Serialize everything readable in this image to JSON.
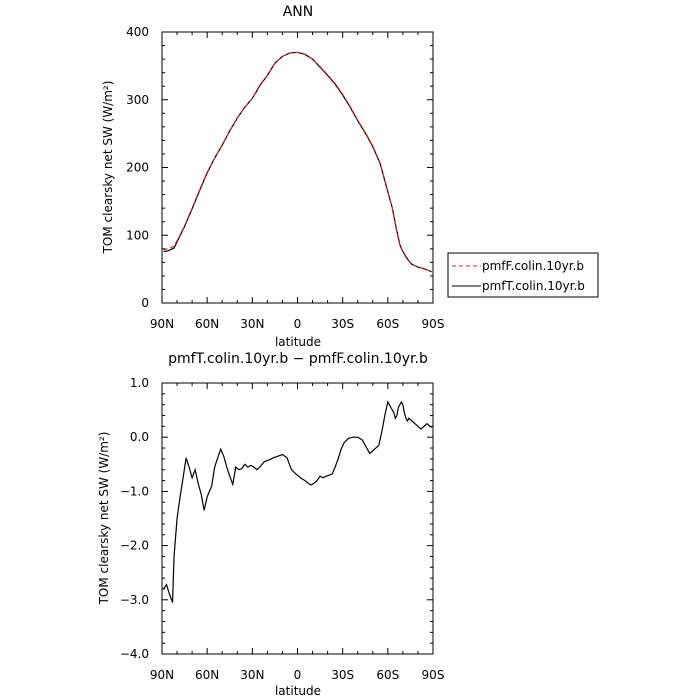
{
  "chart_data": [
    {
      "type": "line",
      "title": "ANN",
      "xlabel": "latitude",
      "ylabel": "TOM clearsky net SW (W/m²)",
      "xlim": [
        90,
        -90
      ],
      "ylim": [
        0,
        400
      ],
      "xticks": [
        90,
        60,
        30,
        0,
        -30,
        -60,
        -90
      ],
      "xtick_labels": [
        "90N",
        "60N",
        "30N",
        "0",
        "30S",
        "60S",
        "90S"
      ],
      "yticks": [
        0,
        100,
        200,
        300,
        400
      ],
      "ytick_labels": [
        "0",
        "100",
        "200",
        "300",
        "400"
      ],
      "grid": false,
      "legend_placement": "right",
      "series": [
        {
          "name": "pmfF.colin.10yr.b",
          "color": "#d62728",
          "dash": "dashed",
          "x": [
            89,
            86,
            82,
            79,
            75,
            70,
            65,
            60,
            55,
            50,
            45,
            40,
            35,
            30,
            25,
            20,
            15,
            10,
            5,
            0,
            -5,
            -10,
            -15,
            -20,
            -25,
            -30,
            -35,
            -40,
            -45,
            -50,
            -55,
            -60,
            -63,
            -66,
            -68,
            -70,
            -73,
            -76,
            -80,
            -85,
            -89
          ],
          "y": [
            79,
            80,
            84,
            96,
            114,
            140,
            167,
            193,
            214,
            234,
            254,
            273,
            289,
            302,
            322,
            336,
            354,
            364,
            369,
            370,
            367,
            360,
            349,
            337,
            324,
            308,
            290,
            270,
            252,
            232,
            206,
            165,
            140,
            105,
            85,
            75,
            64,
            57,
            53,
            50,
            46
          ]
        },
        {
          "name": "pmfT.colin.10yr.b",
          "color": "#000000",
          "dash": "solid",
          "x": [
            89,
            86,
            82,
            79,
            75,
            70,
            65,
            60,
            55,
            50,
            45,
            40,
            35,
            30,
            25,
            20,
            15,
            10,
            5,
            0,
            -5,
            -10,
            -15,
            -20,
            -25,
            -30,
            -35,
            -40,
            -45,
            -50,
            -55,
            -60,
            -63,
            -66,
            -68,
            -70,
            -73,
            -76,
            -80,
            -85,
            -89
          ],
          "y": [
            76,
            77,
            81,
            95,
            113,
            139,
            166,
            192,
            214,
            233,
            254,
            273,
            289,
            302,
            321,
            336,
            354,
            364,
            369,
            370,
            367,
            360,
            348,
            336,
            323,
            307,
            289,
            269,
            251,
            231,
            205,
            164,
            140,
            106,
            86,
            76,
            65,
            57,
            53,
            50,
            46
          ]
        }
      ]
    },
    {
      "type": "line",
      "title": "pmfT.colin.10yr.b − pmfF.colin.10yr.b",
      "xlabel": "latitude",
      "ylabel": "TOM clearsky net SW (W/m²)",
      "xlim": [
        90,
        -90
      ],
      "ylim": [
        -4.0,
        1.0
      ],
      "xticks": [
        90,
        60,
        30,
        0,
        -30,
        -60,
        -90
      ],
      "xtick_labels": [
        "90N",
        "60N",
        "30N",
        "0",
        "30S",
        "60S",
        "90S"
      ],
      "yticks": [
        1.0,
        0.0,
        -1.0,
        -2.0,
        -3.0,
        -4.0
      ],
      "ytick_labels": [
        "1.0",
        "0.0",
        "−1.0",
        "−2.0",
        "−3.0",
        "−4.0"
      ],
      "grid": false,
      "series": [
        {
          "color": "#000000",
          "x": [
            89,
            87,
            85,
            83,
            82,
            80,
            78,
            76,
            74,
            72,
            70,
            68,
            66,
            64,
            62,
            60,
            57,
            55,
            53,
            51,
            49,
            47,
            45,
            43,
            41,
            39,
            37,
            35,
            33,
            31,
            29,
            27,
            25,
            22,
            19,
            16,
            13,
            10,
            7,
            4,
            1,
            -2,
            -5,
            -7,
            -9,
            -11,
            -13,
            -15,
            -17,
            -19,
            -21,
            -23,
            -25,
            -27,
            -29,
            -31,
            -34,
            -37,
            -40,
            -43,
            -46,
            -48,
            -50,
            -52,
            -54,
            -56,
            -58,
            -60,
            -62,
            -64,
            -65,
            -66,
            -67,
            -68,
            -69,
            -70,
            -71,
            -72,
            -73,
            -74,
            -76,
            -78,
            -80,
            -82,
            -84,
            -86,
            -88,
            -89
          ],
          "y": [
            -2.8,
            -2.72,
            -2.9,
            -3.05,
            -2.2,
            -1.5,
            -1.1,
            -0.75,
            -0.38,
            -0.55,
            -0.75,
            -0.6,
            -0.85,
            -1.05,
            -1.35,
            -1.1,
            -0.9,
            -0.55,
            -0.38,
            -0.22,
            -0.35,
            -0.55,
            -0.72,
            -0.87,
            -0.55,
            -0.6,
            -0.58,
            -0.5,
            -0.55,
            -0.52,
            -0.55,
            -0.6,
            -0.55,
            -0.45,
            -0.42,
            -0.38,
            -0.35,
            -0.32,
            -0.38,
            -0.6,
            -0.68,
            -0.75,
            -0.8,
            -0.85,
            -0.88,
            -0.85,
            -0.8,
            -0.72,
            -0.75,
            -0.72,
            -0.7,
            -0.68,
            -0.55,
            -0.4,
            -0.22,
            -0.1,
            -0.02,
            0.0,
            0.0,
            -0.05,
            -0.2,
            -0.3,
            -0.25,
            -0.2,
            -0.15,
            0.1,
            0.4,
            0.65,
            0.55,
            0.45,
            0.35,
            0.4,
            0.55,
            0.6,
            0.65,
            0.6,
            0.45,
            0.35,
            0.3,
            0.35,
            0.3,
            0.25,
            0.2,
            0.15,
            0.2,
            0.25,
            0.2,
            0.18
          ]
        }
      ]
    }
  ]
}
